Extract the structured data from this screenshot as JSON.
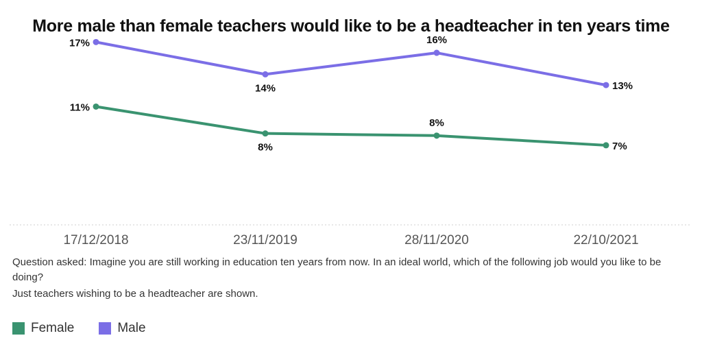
{
  "chart_data": {
    "type": "line",
    "title": "More male than female teachers would like to be a headteacher in ten years time",
    "categories": [
      "17/12/2018",
      "23/11/2019",
      "28/11/2020",
      "22/10/2021"
    ],
    "series": [
      {
        "name": "Male",
        "color": "#7b6ee6",
        "values": [
          17,
          14,
          16,
          13
        ],
        "labels": [
          "17%",
          "14%",
          "16%",
          "13%"
        ]
      },
      {
        "name": "Female",
        "color": "#3a9370",
        "values": [
          11,
          8.5,
          8.3,
          7.4
        ],
        "labels": [
          "11%",
          "8%",
          "8%",
          "7%"
        ]
      }
    ],
    "ylim": [
      0,
      19
    ],
    "y_unit": "%",
    "grid": false,
    "legend": "bottom-left"
  },
  "notes": {
    "question": "Question asked: Imagine you are still working in education ten years from now. In an ideal world, which of the following job would you like to be doing?",
    "filter": "Just teachers wishing to be a headteacher are shown."
  },
  "legend_items": [
    {
      "label": "Female",
      "color": "#3a9370"
    },
    {
      "label": "Male",
      "color": "#7b6ee6"
    }
  ]
}
